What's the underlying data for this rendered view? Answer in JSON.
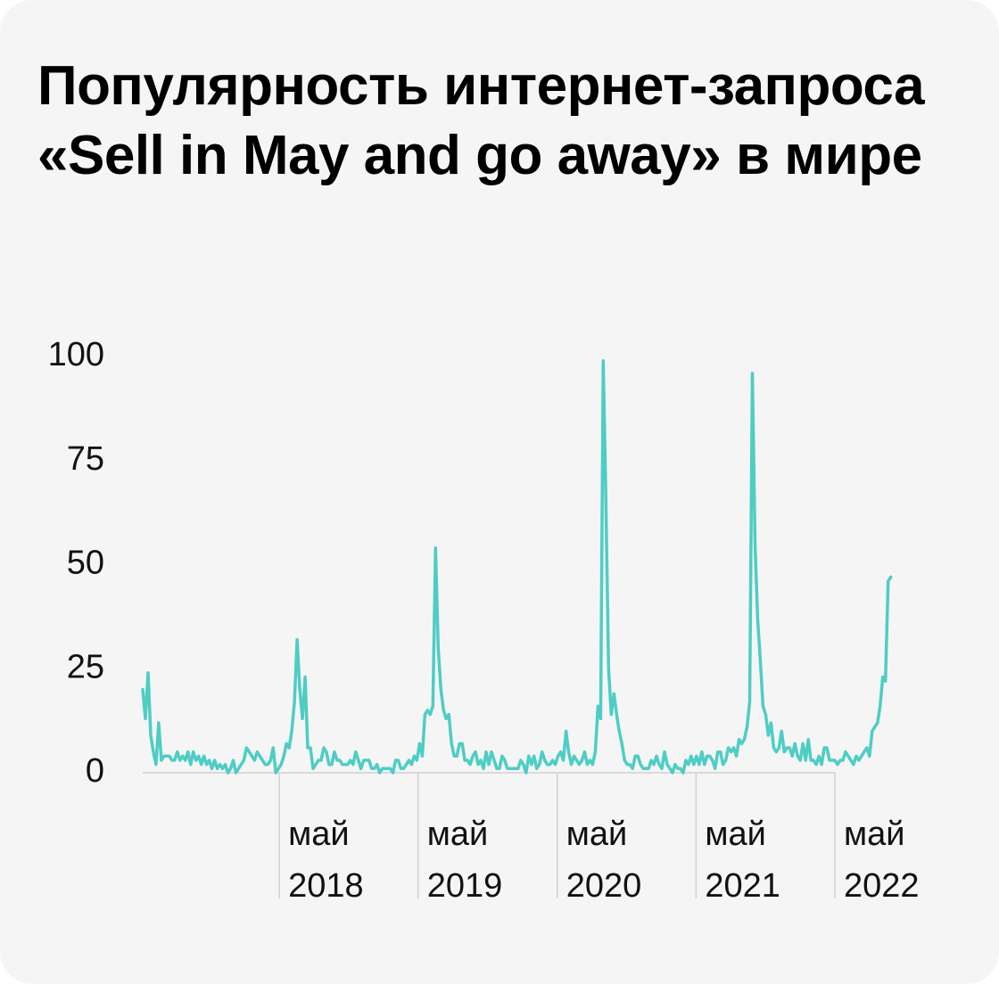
{
  "title": "Популярность интернет-запроса «Sell in May and go away» в мире",
  "colors": {
    "background": "#f5f5f5",
    "line": "#4ecdc4",
    "axis": "#d0d0d0",
    "text": "#000000"
  },
  "chart_data": {
    "type": "line",
    "title": "Популярность интернет-запроса «Sell in May and go away» в мире",
    "xlabel": "",
    "ylabel": "",
    "ylim": [
      0,
      100
    ],
    "yticks": [
      0,
      25,
      50,
      75,
      100
    ],
    "grid": false,
    "xticks": [
      {
        "date": "2018-05",
        "line1": "май",
        "line2": "2018"
      },
      {
        "date": "2019-05",
        "line1": "май",
        "line2": "2019"
      },
      {
        "date": "2020-05",
        "line1": "май",
        "line2": "2020"
      },
      {
        "date": "2021-05",
        "line1": "май",
        "line2": "2021"
      },
      {
        "date": "2022-05",
        "line1": "май",
        "line2": "2022"
      }
    ],
    "x_range": [
      "2017-05-07",
      "2022-05-01"
    ],
    "series": [
      {
        "name": "",
        "frequency": "weekly",
        "start": "2017-05-07",
        "values": [
          20,
          13,
          24,
          9,
          5,
          2,
          12,
          3,
          4,
          4,
          4,
          3,
          3,
          5,
          3,
          4,
          3,
          5,
          2,
          5,
          3,
          4,
          2,
          4,
          2,
          3,
          1,
          3,
          1,
          2,
          1,
          2,
          0,
          1,
          3,
          0,
          1,
          2,
          3,
          6,
          5,
          4,
          3,
          5,
          4,
          3,
          2,
          2,
          3,
          6,
          0,
          1,
          2,
          4,
          7,
          6,
          10,
          17,
          32,
          20,
          13,
          23,
          6,
          6,
          1,
          2,
          3,
          3,
          6,
          5,
          2,
          2,
          5,
          3,
          3,
          2,
          2,
          2,
          3,
          2,
          5,
          3,
          1,
          3,
          3,
          3,
          1,
          1,
          2,
          0,
          1,
          1,
          1,
          1,
          0,
          3,
          3,
          1,
          1,
          2,
          3,
          2,
          4,
          3,
          7,
          4,
          14,
          15,
          14,
          16,
          54,
          30,
          20,
          15,
          13,
          14,
          7,
          4,
          4,
          7,
          7,
          3,
          3,
          2,
          4,
          5,
          2,
          3,
          1,
          5,
          2,
          5,
          3,
          1,
          1,
          4,
          3,
          1,
          1,
          1,
          1,
          1,
          3,
          2,
          0,
          4,
          2,
          4,
          1,
          2,
          5,
          3,
          2,
          2,
          3,
          2,
          4,
          5,
          3,
          10,
          5,
          2,
          4,
          3,
          2,
          3,
          5,
          2,
          3,
          2,
          5,
          16,
          13,
          99,
          65,
          25,
          14,
          19,
          14,
          10,
          7,
          3,
          2,
          2,
          1,
          4,
          4,
          2,
          1,
          1,
          1,
          3,
          2,
          4,
          2,
          1,
          5,
          2,
          1,
          0,
          2,
          1,
          1,
          0,
          3,
          2,
          4,
          2,
          4,
          2,
          5,
          2,
          4,
          4,
          3,
          1,
          5,
          5,
          2,
          3,
          6,
          5,
          6,
          4,
          8,
          7,
          8,
          11,
          17,
          96,
          55,
          37,
          27,
          16,
          14,
          9,
          12,
          6,
          5,
          6,
          10,
          5,
          6,
          6,
          4,
          7,
          4,
          3,
          7,
          3,
          8,
          3,
          3,
          2,
          4,
          2,
          6,
          6,
          3,
          3,
          3,
          2,
          3,
          3,
          5,
          4,
          3,
          2,
          4,
          3,
          4,
          5,
          6,
          4,
          10,
          11,
          12,
          16,
          23,
          22,
          46,
          47
        ]
      }
    ]
  }
}
